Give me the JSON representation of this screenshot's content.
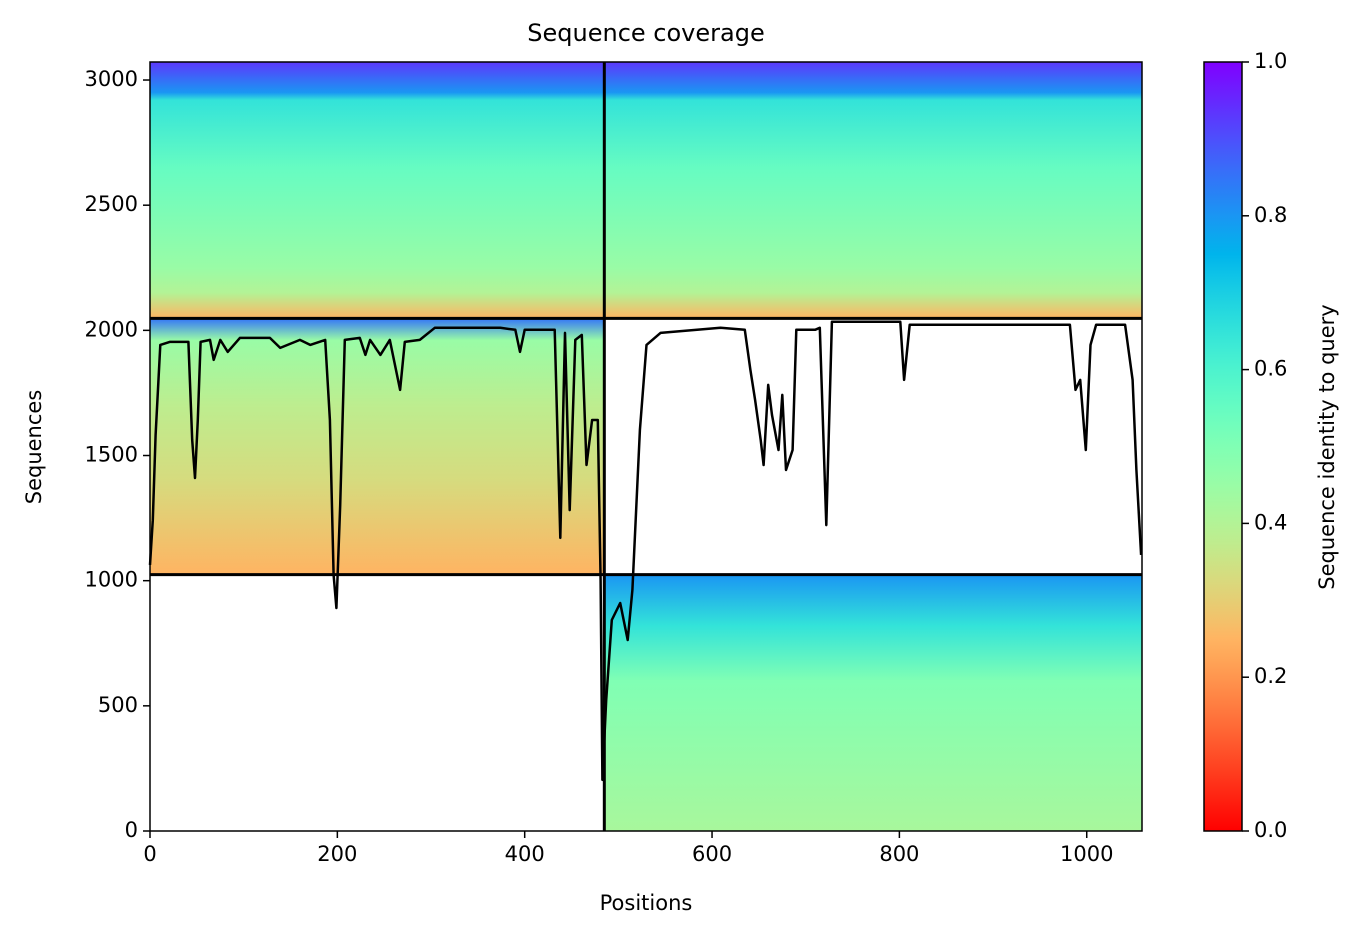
{
  "chart_data": {
    "type": "coverage",
    "title": "Sequence coverage",
    "xlabel": "Positions",
    "ylabel": "Sequences",
    "colorbar_label": "Sequence identity to query",
    "colormap": "rainbow_r",
    "xlim": [
      0,
      1059
    ],
    "ylim": [
      0,
      3072
    ],
    "xticks": [
      0,
      200,
      400,
      600,
      800,
      1000
    ],
    "yticks": [
      0,
      500,
      1000,
      1500,
      2000,
      2500,
      3000
    ],
    "clim": [
      0,
      1
    ],
    "cticks": [
      {
        "value": 0,
        "label": "0.0"
      },
      {
        "value": 0.2,
        "label": "0.2"
      },
      {
        "value": 0.4,
        "label": "0.4"
      },
      {
        "value": 0.6,
        "label": "0.6"
      },
      {
        "value": 0.8,
        "label": "0.8"
      },
      {
        "value": 1,
        "label": "1.0"
      }
    ],
    "blocks": [
      {
        "x": [
          0,
          1059
        ],
        "y": [
          2048,
          3072
        ],
        "sequences": [
          3072,
          2950,
          2920,
          2650,
          2250,
          2150,
          2048
        ],
        "identity": [
          0.93,
          0.8,
          0.65,
          0.55,
          0.45,
          0.4,
          0.25
        ]
      },
      {
        "x": [
          0,
          485
        ],
        "y": [
          1024,
          2048
        ],
        "sequences": [
          2048,
          1960,
          1700,
          1400,
          1024
        ],
        "identity": [
          0.85,
          0.45,
          0.38,
          0.33,
          0.25
        ]
      },
      {
        "x": [
          485,
          1059
        ],
        "y": [
          0,
          1024
        ],
        "sequences": [
          1024,
          820,
          600,
          0
        ],
        "identity": [
          0.8,
          0.65,
          0.5,
          0.42
        ]
      }
    ],
    "dividers": {
      "x": [
        485
      ],
      "y": [
        1024,
        2048
      ]
    },
    "coverage": {
      "x": [
        0,
        3,
        6,
        11,
        21,
        41,
        45,
        48,
        51,
        54,
        64,
        68,
        75,
        83,
        96,
        128,
        139,
        160,
        171,
        187,
        192,
        196,
        199,
        203,
        208,
        224,
        230,
        235,
        246,
        256,
        267,
        272,
        288,
        304,
        374,
        390,
        395,
        400,
        432,
        438,
        443,
        448,
        454,
        461,
        466,
        472,
        478,
        481,
        483,
        487,
        493,
        502,
        510,
        515,
        523,
        530,
        545,
        609,
        635,
        641,
        646,
        652,
        655,
        660,
        664,
        671,
        675,
        679,
        686,
        690,
        710,
        715,
        722,
        728,
        801,
        805,
        811,
        982,
        988,
        993,
        999,
        1004,
        1010,
        1041,
        1049,
        1053,
        1058
      ],
      "values": [
        1063,
        1242,
        1582,
        1942,
        1954,
        1954,
        1562,
        1410,
        1642,
        1954,
        1962,
        1882,
        1962,
        1914,
        1970,
        1970,
        1930,
        1962,
        1942,
        1962,
        1642,
        1023,
        891,
        1302,
        1962,
        1970,
        1902,
        1962,
        1902,
        1962,
        1762,
        1954,
        1962,
        2010,
        2010,
        2002,
        1914,
        2002,
        2002,
        1171,
        1990,
        1282,
        1962,
        1982,
        1462,
        1642,
        1642,
        1003,
        204,
        523,
        843,
        911,
        763,
        963,
        1602,
        1942,
        1990,
        2010,
        2002,
        1842,
        1722,
        1562,
        1462,
        1782,
        1662,
        1522,
        1742,
        1442,
        1522,
        2002,
        2002,
        2010,
        1222,
        2034,
        2034,
        1802,
        2022,
        2022,
        1762,
        1802,
        1522,
        1942,
        2022,
        2022,
        1802,
        1442,
        1103
      ]
    }
  }
}
